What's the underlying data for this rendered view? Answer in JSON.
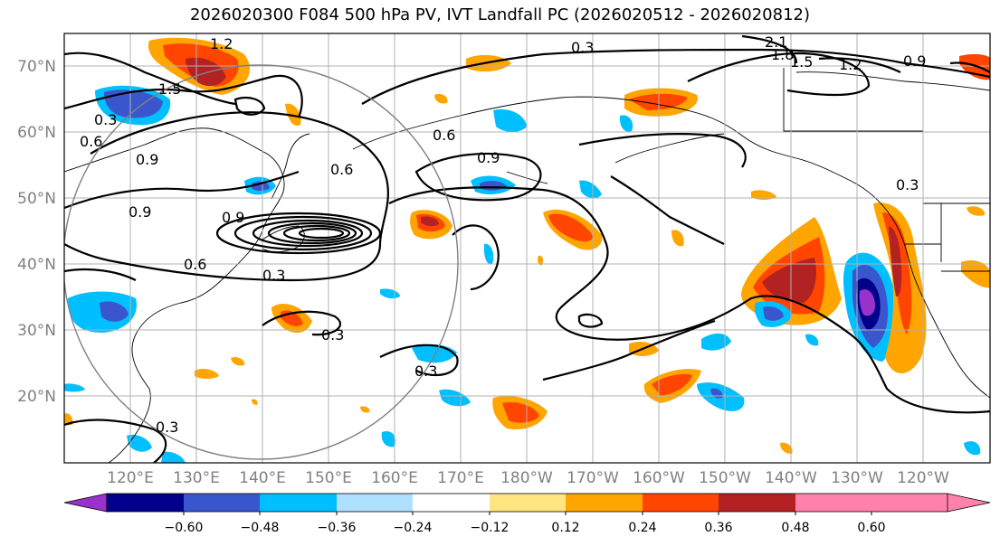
{
  "title": "2026020300 F084 500 hPa PV, IVT Landfall PC (2026020512 - 2026020812)",
  "latitude_labels": [
    "70°N",
    "60°N",
    "50°N",
    "40°N",
    "30°N",
    "20°N"
  ],
  "longitude_labels": [
    "120°E",
    "130°E",
    "140°E",
    "150°E",
    "160°E",
    "170°E",
    "180°W",
    "170°W",
    "160°W",
    "150°W",
    "140°W",
    "130°W",
    "120°W"
  ],
  "contour_labels": {
    "c1": "0.6",
    "c2": "0.3",
    "c3": "0.9",
    "c4": "1.5",
    "c5": "0.9",
    "c6": "0.6",
    "c7": "0.9",
    "c8": "0.9",
    "c9": "0.6",
    "c10": "0.3",
    "c11": "0.3",
    "c12": "0.3",
    "c13": "0.3",
    "c14": "0.3",
    "c15": "2.1",
    "c16": "1.8",
    "c17": "1.5",
    "c18": "1.2",
    "c19": "0.9",
    "c20": "0.3",
    "c21": "1.2",
    "c22": "0.6"
  },
  "colorbar": {
    "ticks": [
      "−0.60",
      "−0.48",
      "−0.36",
      "−0.24",
      "−0.12",
      "0.12",
      "0.24",
      "0.36",
      "0.48",
      "0.60"
    ],
    "colors": [
      "#9932cc",
      "#00008b",
      "#3a56cc",
      "#00bfff",
      "#b0e0ff",
      "#ffffff",
      "#ffe680",
      "#ffa500",
      "#ff4500",
      "#b22222",
      "#ff82ac"
    ]
  },
  "fill_colors": {
    "neg1": "#00bfff",
    "neg2": "#3a56cc",
    "neg3": "#00008b",
    "neg4": "#9932cc",
    "pos1": "#ffe680",
    "pos2": "#ffa500",
    "pos3": "#ff4500",
    "pos4": "#b22222"
  }
}
